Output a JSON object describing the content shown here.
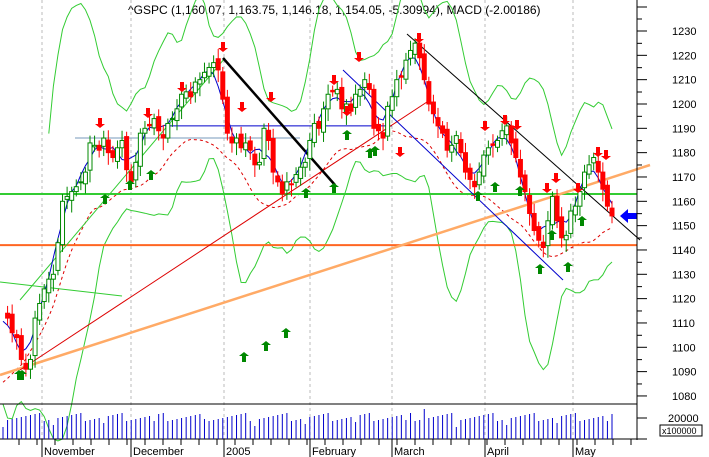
{
  "chart_data": {
    "type": "candlestick",
    "title": "^GSPC (1,160.07, 1,163.75, 1,146.18, 1,154.05, -5.30994), MACD (-2.00186)",
    "ticker": "^GSPC",
    "last_bar": {
      "open": 1160.07,
      "high": 1163.75,
      "low": 1146.18,
      "close": 1154.05,
      "change": -5.30994
    },
    "macd": -2.00186,
    "xlabel": "",
    "ylabel": "",
    "x_tick_labels": [
      "November",
      "December",
      "2005",
      "February",
      "March",
      "April",
      "May"
    ],
    "y_tick_labels": [
      1230,
      1220,
      1210,
      1200,
      1190,
      1180,
      1170,
      1160,
      1150,
      1140,
      1130,
      1120,
      1110,
      1100,
      1090,
      1080
    ],
    "ylim": [
      1077,
      1235
    ],
    "grid": "vertical dashed at month boundaries",
    "volume_axis": {
      "tick_label": "20000",
      "multiplier_label": "x100000"
    },
    "horizontal_lines": [
      {
        "name": "resistance-green",
        "value": 1163,
        "color": "#33cc33"
      },
      {
        "name": "support-orange",
        "value": 1142,
        "color": "#ff6622"
      },
      {
        "name": "blue-level",
        "value": 1191,
        "color": "#0000cc"
      },
      {
        "name": "gray-level",
        "value": 1186,
        "color": "#7799bb"
      }
    ],
    "approx_close_series": {
      "dates_start": "2004-10-18",
      "values": [
        1114,
        1112,
        1106,
        1104,
        1095,
        1091,
        1095,
        1112,
        1118,
        1124,
        1128,
        1130,
        1143,
        1160,
        1162,
        1164,
        1166,
        1168,
        1172,
        1184,
        1183,
        1181,
        1186,
        1180,
        1178,
        1182,
        1185,
        1173,
        1168,
        1176,
        1188,
        1190,
        1191,
        1194,
        1189,
        1186,
        1192,
        1194,
        1198,
        1204,
        1205,
        1203,
        1209,
        1210,
        1213,
        1215,
        1217,
        1214,
        1202,
        1188,
        1184,
        1186,
        1182,
        1184,
        1181,
        1175,
        1176,
        1190,
        1185,
        1172,
        1168,
        1163,
        1168,
        1167,
        1171,
        1174,
        1176,
        1185,
        1192,
        1190,
        1198,
        1204,
        1205,
        1206,
        1198,
        1200,
        1197,
        1204,
        1206,
        1210,
        1206,
        1190,
        1189,
        1186,
        1199,
        1203,
        1210,
        1211,
        1218,
        1222,
        1225,
        1219,
        1210,
        1200,
        1196,
        1191,
        1188,
        1181,
        1183,
        1187,
        1180,
        1172,
        1169,
        1166,
        1172,
        1179,
        1182,
        1183,
        1185,
        1189,
        1191,
        1184,
        1178,
        1170,
        1164,
        1155,
        1148,
        1144,
        1141,
        1152,
        1162,
        1152,
        1145,
        1146,
        1156,
        1158,
        1164,
        1172,
        1175,
        1178,
        1172,
        1165,
        1158,
        1154
      ]
    },
    "annotations": [
      "red down arrows (sell signals)",
      "green up arrows (buy signals)",
      "blue left arrow at last bar",
      "trend channel lines",
      "bollinger-style green bands",
      "red dashed moving average",
      "blue moving average"
    ],
    "volume": "blue bars, roughly 14000-25000 x100000"
  },
  "colors": {
    "up_candle": "#008800",
    "down_candle": "#ff0000",
    "ma_blue": "#0000cc",
    "band_green": "#33cc33",
    "ma_red_dashed": "#dd0000",
    "orange_trend": "#ffaa66",
    "volume": "#0000cc"
  }
}
